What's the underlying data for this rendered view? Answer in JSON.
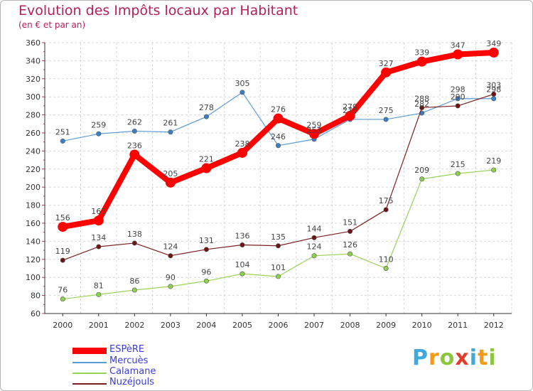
{
  "header": {
    "title": "Evolution des Impôts locaux par Habitant",
    "subtitle": "(en € et par an)"
  },
  "logo": {
    "letters": [
      "P",
      "r",
      "o",
      "x",
      "i",
      "t",
      "i"
    ],
    "colors": [
      "#3fa9dc",
      "#f29a1a",
      "#8cc63f",
      "#e23c2b",
      "#3fa9dc",
      "#f29a1a",
      "#8cc63f"
    ]
  },
  "chart_data": {
    "type": "line",
    "title": "Evolution des Impôts locaux par Habitant",
    "subtitle": "(en € et par an)",
    "xlabel": "",
    "ylabel": "",
    "x": [
      "2000",
      "2001",
      "2002",
      "2003",
      "2004",
      "2005",
      "2006",
      "2007",
      "2008",
      "2009",
      "2010",
      "2011",
      "2012"
    ],
    "ylim": [
      60,
      360
    ],
    "yticks": [
      60,
      80,
      100,
      120,
      140,
      160,
      180,
      200,
      220,
      240,
      260,
      280,
      300,
      320,
      340,
      360
    ],
    "grid": true,
    "legend_position": "bottom-left",
    "series": [
      {
        "name": "ESPèRE",
        "color": "#ff0000",
        "values": [
          156,
          163,
          236,
          205,
          221,
          238,
          276,
          259,
          279,
          327,
          339,
          347,
          349
        ]
      },
      {
        "name": "Mercuès",
        "color": "#5b9bd5",
        "values": [
          251,
          259,
          262,
          261,
          278,
          305,
          246,
          253,
          275,
          275,
          282,
          298,
          298
        ]
      },
      {
        "name": "Calamane",
        "color": "#9ad25a",
        "values": [
          76,
          81,
          86,
          90,
          96,
          104,
          101,
          124,
          126,
          110,
          209,
          215,
          219
        ]
      },
      {
        "name": "Nuzéjouls",
        "color": "#7a1f1f",
        "values": [
          119,
          134,
          138,
          124,
          131,
          136,
          135,
          144,
          151,
          175,
          288,
          290,
          303
        ]
      }
    ]
  }
}
